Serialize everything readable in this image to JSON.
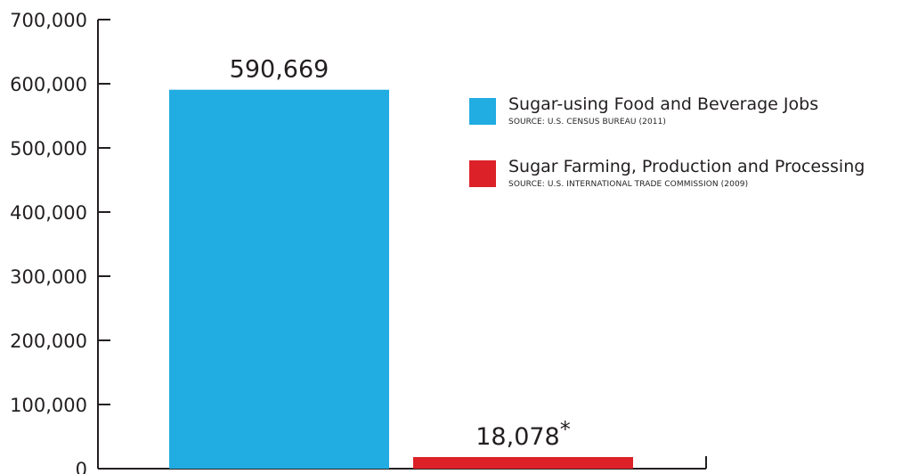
{
  "chart_data": {
    "type": "bar",
    "categories": [
      "Sugar-using Food and Beverage Jobs",
      "Sugar Farming, Production and Processing"
    ],
    "values": [
      590669,
      18078
    ],
    "data_labels": [
      "590,669",
      "18,078*"
    ],
    "colors": [
      "#21ace2",
      "#dc2128"
    ],
    "ylim": [
      0,
      700000
    ],
    "yticks": [
      0,
      100000,
      200000,
      300000,
      400000,
      500000,
      600000,
      700000
    ],
    "ytick_labels": [
      "0",
      "100,000",
      "200,000",
      "300,000",
      "400,000",
      "500,000",
      "600,000",
      "700,000"
    ],
    "grid": false,
    "legend_position": "top-right",
    "legend": [
      {
        "name": "Sugar-using Food and Beverage Jobs",
        "source": "SOURCE: U.S. CENSUS BUREAU (2011)",
        "color": "#21ace2"
      },
      {
        "name": "Sugar Farming, Production and Processing",
        "source": "SOURCE: U.S. INTERNATIONAL TRADE COMMISSION (2009)",
        "color": "#dc2128"
      }
    ]
  }
}
